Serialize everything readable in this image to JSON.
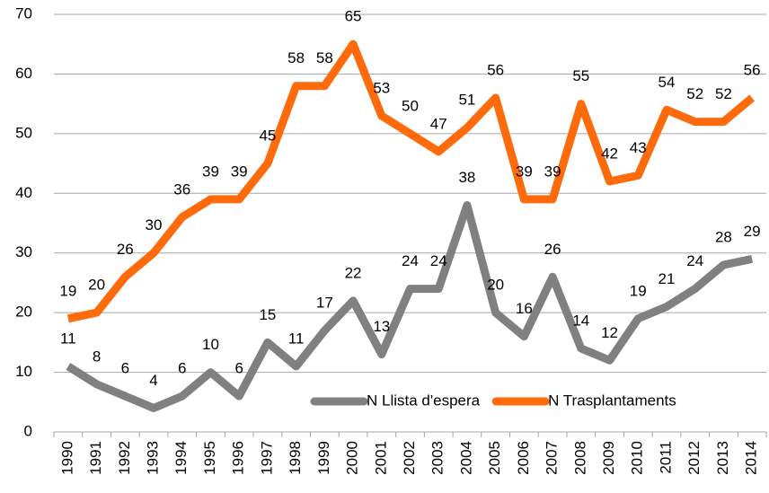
{
  "chart_data": {
    "type": "line",
    "categories": [
      "1990",
      "1991",
      "1992",
      "1993",
      "1994",
      "1995",
      "1996",
      "1997",
      "1998",
      "1999",
      "2000",
      "2001",
      "2002",
      "2003",
      "2004",
      "2005",
      "2006",
      "2007",
      "2008",
      "2009",
      "2010",
      "2011",
      "2012",
      "2013",
      "2014"
    ],
    "series": [
      {
        "name": "N Llista d'espera",
        "color": "#808080",
        "values": [
          11,
          8,
          6,
          4,
          6,
          10,
          6,
          15,
          11,
          17,
          22,
          13,
          24,
          24,
          38,
          20,
          16,
          26,
          14,
          12,
          19,
          21,
          24,
          28,
          29
        ]
      },
      {
        "name": "N Trasplantaments",
        "color": "#ff6a0a",
        "values": [
          19,
          20,
          26,
          30,
          36,
          39,
          39,
          45,
          58,
          58,
          65,
          53,
          50,
          47,
          51,
          56,
          39,
          39,
          55,
          42,
          43,
          54,
          52,
          52,
          56
        ]
      }
    ],
    "ylim": [
      0,
      70
    ],
    "yticks": [
      0,
      10,
      20,
      30,
      40,
      50,
      60,
      70
    ],
    "grid": true,
    "legend": "lower right"
  }
}
